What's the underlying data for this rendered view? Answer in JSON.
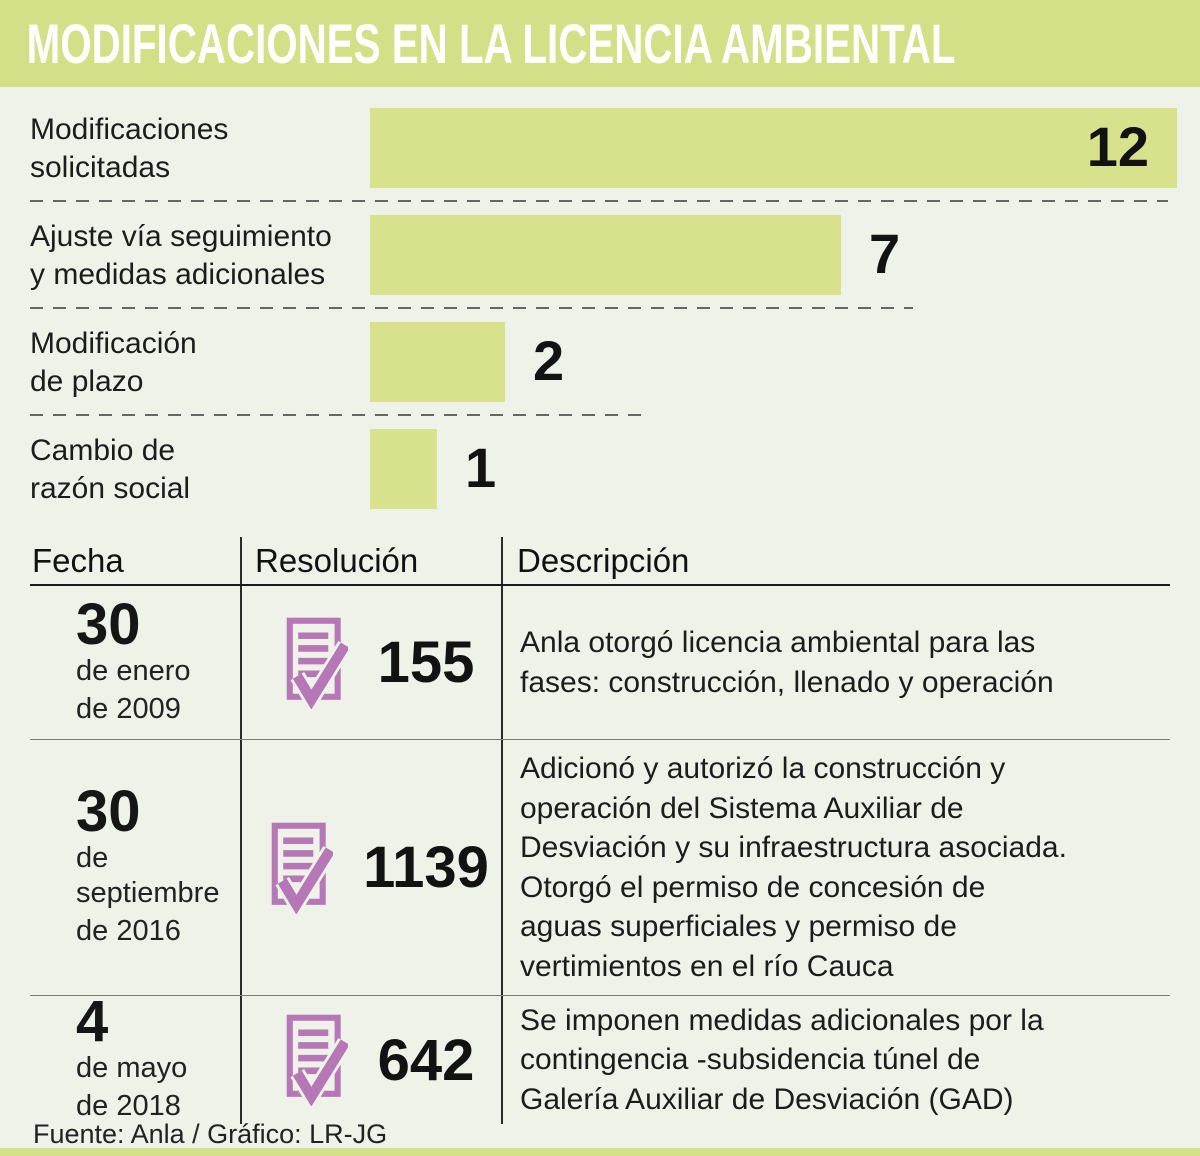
{
  "title": "MODIFICACIONES EN LA LICENCIA AMBIENTAL",
  "chart_data": {
    "type": "bar",
    "orientation": "horizontal",
    "categories": [
      "Modificaciones\nsolicitadas",
      "Ajuste vía seguimiento\ny medidas adicionales",
      "Modificación\nde plazo",
      "Cambio de\nrazón social"
    ],
    "values": [
      12,
      7,
      2,
      1
    ],
    "xlim": [
      0,
      12
    ],
    "grid": false,
    "legend": false,
    "bar_color": "#d8e18c",
    "value_labels": [
      "12",
      "7",
      "2",
      "1"
    ]
  },
  "table": {
    "headers": [
      "Fecha",
      "Resolución",
      "Descripción"
    ],
    "icon_name": "document-check-icon",
    "rows": [
      {
        "date_day": "30",
        "date_month": "de enero",
        "date_year": "de 2009",
        "resolution": "155",
        "description": "Anla otorgó licencia ambiental para las\nfases: construcción, llenado y operación"
      },
      {
        "date_day": "30",
        "date_month": "de septiembre",
        "date_year": "de 2016",
        "resolution": "1139",
        "description": "Adicionó y autorizó la construcción y\noperación del Sistema Auxiliar de\nDesviación y su infraestructura asociada.\nOtorgó el permiso de concesión de\naguas superficiales y permiso de\nvertimientos en el río Cauca"
      },
      {
        "date_day": "4",
        "date_month": "de mayo",
        "date_year": "de 2018",
        "resolution": "642",
        "description": "Se imponen medidas adicionales por la\ncontingencia -subsidencia túnel de\nGalería Auxiliar de Desviación (GAD)"
      }
    ]
  },
  "footer": {
    "text": "Fuente: Anla / Gráfico: LR-JG"
  },
  "colors": {
    "accent_green": "#d4e087",
    "bar_green": "#d8e18c",
    "background": "#eef2e8",
    "icon_purple": "#b577b6",
    "title_text": "#ffffff",
    "body_text": "#1c1c1c"
  }
}
